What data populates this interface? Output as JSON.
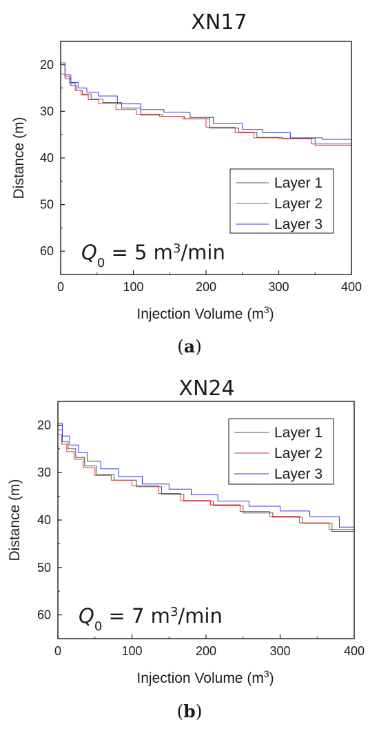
{
  "chart_data": [
    {
      "type": "line",
      "panel": "a",
      "title": "XN17",
      "xlabel": "Injection Volume (m3)",
      "ylabel": "Distance (m)",
      "xlim": [
        0,
        400
      ],
      "ylim": [
        15,
        65
      ],
      "y_inverted": true,
      "x_ticks": [
        0,
        100,
        200,
        300,
        400
      ],
      "y_ticks": [
        20,
        30,
        40,
        50,
        60
      ],
      "legend_position": "lower-right",
      "annotation": "Q0 = 5 m3/min",
      "caption": "(a)",
      "series": [
        {
          "name": "Layer 1",
          "color": "#555555",
          "points": [
            [
              0,
              20.0
            ],
            [
              6,
              23.0
            ],
            [
              14,
              24.5
            ],
            [
              22,
              25.5
            ],
            [
              30,
              26.3
            ],
            [
              42,
              27.4
            ],
            [
              58,
              28.1
            ],
            [
              84,
              29.3
            ],
            [
              110,
              30.8
            ],
            [
              140,
              31.1
            ],
            [
              170,
              31.6
            ],
            [
              205,
              33.6
            ],
            [
              245,
              34.5
            ],
            [
              270,
              35.6
            ],
            [
              305,
              35.8
            ],
            [
              350,
              37.3
            ],
            [
              400,
              37.5
            ]
          ]
        },
        {
          "name": "Layer 2",
          "color": "#e03030",
          "points": [
            [
              0,
              22.0
            ],
            [
              6,
              22.5
            ],
            [
              12,
              24.0
            ],
            [
              20,
              25.5
            ],
            [
              28,
              26.5
            ],
            [
              38,
              27.5
            ],
            [
              52,
              28.3
            ],
            [
              76,
              29.6
            ],
            [
              104,
              30.6
            ],
            [
              136,
              31.1
            ],
            [
              168,
              31.6
            ],
            [
              200,
              33.4
            ],
            [
              240,
              34.6
            ],
            [
              266,
              35.7
            ],
            [
              300,
              35.9
            ],
            [
              345,
              37.0
            ],
            [
              400,
              37.8
            ]
          ]
        },
        {
          "name": "Layer 3",
          "color": "#3333dd",
          "points": [
            [
              0,
              19.6
            ],
            [
              6,
              22.2
            ],
            [
              14,
              23.8
            ],
            [
              24,
              25.0
            ],
            [
              36,
              25.9
            ],
            [
              52,
              26.7
            ],
            [
              78,
              28.4
            ],
            [
              110,
              29.6
            ],
            [
              142,
              30.2
            ],
            [
              178,
              31.3
            ],
            [
              210,
              32.6
            ],
            [
              250,
              33.9
            ],
            [
              278,
              34.6
            ],
            [
              316,
              35.7
            ],
            [
              360,
              36.0
            ],
            [
              400,
              37.6
            ]
          ]
        }
      ]
    },
    {
      "type": "line",
      "panel": "b",
      "title": "XN24",
      "xlabel": "Injection Volume (m3)",
      "ylabel": "Distance (m)",
      "xlim": [
        0,
        400
      ],
      "ylim": [
        15,
        65
      ],
      "y_inverted": true,
      "x_ticks": [
        0,
        100,
        200,
        300,
        400
      ],
      "y_ticks": [
        20,
        30,
        40,
        50,
        60
      ],
      "legend_position": "upper-right",
      "annotation": "Q0 = 7 m3/min",
      "caption": "(b)",
      "series": [
        {
          "name": "Layer 1",
          "color": "#555555",
          "points": [
            [
              0,
              21.0
            ],
            [
              6,
              23.5
            ],
            [
              14,
              25.0
            ],
            [
              24,
              26.8
            ],
            [
              36,
              28.6
            ],
            [
              52,
              30.4
            ],
            [
              76,
              31.6
            ],
            [
              106,
              33.0
            ],
            [
              140,
              34.6
            ],
            [
              170,
              36.0
            ],
            [
              210,
              37.0
            ],
            [
              250,
              38.5
            ],
            [
              290,
              39.4
            ],
            [
              330,
              40.7
            ],
            [
              370,
              42.4
            ],
            [
              400,
              44.0
            ]
          ]
        },
        {
          "name": "Layer 2",
          "color": "#e03030",
          "points": [
            [
              0,
              22.0
            ],
            [
              5,
              24.0
            ],
            [
              12,
              25.6
            ],
            [
              22,
              27.2
            ],
            [
              34,
              29.0
            ],
            [
              50,
              30.6
            ],
            [
              72,
              31.6
            ],
            [
              100,
              32.8
            ],
            [
              136,
              34.4
            ],
            [
              166,
              35.9
            ],
            [
              206,
              36.8
            ],
            [
              246,
              38.2
            ],
            [
              286,
              39.2
            ],
            [
              326,
              40.6
            ],
            [
              366,
              42.0
            ],
            [
              400,
              43.5
            ]
          ]
        },
        {
          "name": "Layer 3",
          "color": "#3333dd",
          "points": [
            [
              0,
              19.6
            ],
            [
              6,
              22.3
            ],
            [
              16,
              24.2
            ],
            [
              28,
              25.8
            ],
            [
              40,
              27.6
            ],
            [
              58,
              29.2
            ],
            [
              82,
              30.8
            ],
            [
              114,
              32.4
            ],
            [
              150,
              33.5
            ],
            [
              180,
              34.7
            ],
            [
              216,
              36.0
            ],
            [
              258,
              37.1
            ],
            [
              300,
              38.1
            ],
            [
              340,
              39.3
            ],
            [
              380,
              41.5
            ],
            [
              400,
              42.5
            ]
          ]
        }
      ]
    }
  ]
}
